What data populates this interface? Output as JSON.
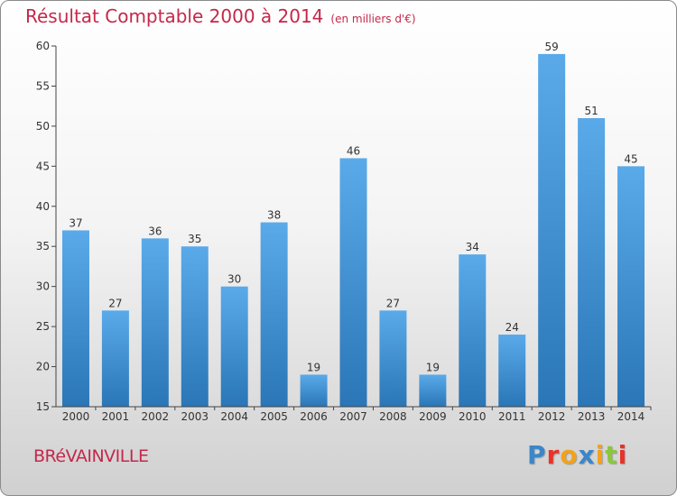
{
  "title": "Résultat Comptable 2000 à 2014",
  "subtitle": "(en milliers d'€)",
  "city": "BRéVAINVILLE",
  "logo": {
    "letters": [
      "P",
      "r",
      "o",
      "x",
      "i",
      "t",
      "i"
    ],
    "colors": [
      "#3a86c8",
      "#e8322a",
      "#f2a21b",
      "#3a86c8",
      "#f2a21b",
      "#8cc63f",
      "#e8322a"
    ]
  },
  "colors": {
    "title": "#c4284a",
    "bar_light": "#5aaaea",
    "bar_dark": "#2a76b6",
    "axis": "#444444"
  },
  "chart_data": {
    "type": "bar",
    "categories": [
      "2000",
      "2001",
      "2002",
      "2003",
      "2004",
      "2005",
      "2006",
      "2007",
      "2008",
      "2009",
      "2010",
      "2011",
      "2012",
      "2013",
      "2014"
    ],
    "values": [
      37,
      27,
      36,
      35,
      30,
      38,
      19,
      46,
      27,
      19,
      34,
      24,
      59,
      51,
      45
    ],
    "data_labels": [
      "37",
      "27",
      "36",
      "35",
      "30",
      "38",
      "19",
      "46",
      "27",
      "19",
      "34",
      "24",
      "59",
      "51",
      "45"
    ],
    "yticks": [
      "15",
      "20",
      "25",
      "30",
      "35",
      "40",
      "45",
      "50",
      "55",
      "60"
    ],
    "ylim": [
      15,
      60
    ],
    "grid": false,
    "title": "Résultat Comptable 2000 à 2014",
    "xlabel": "",
    "ylabel": ""
  }
}
